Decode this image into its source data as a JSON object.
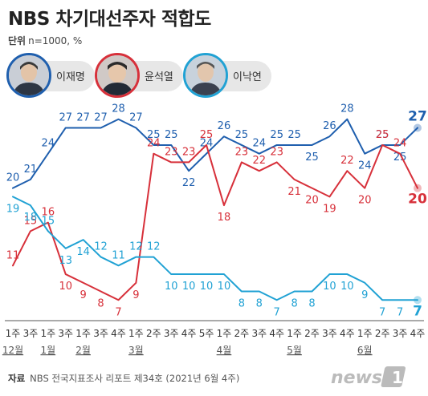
{
  "title": "NBS 차기대선주자 적합도",
  "unit": {
    "label": "단위",
    "value": "n=1000, %"
  },
  "legend": [
    {
      "name": "이재명",
      "color": "#1f5fae",
      "icon": "candidate-portrait-blue"
    },
    {
      "name": "윤석열",
      "color": "#d7303a",
      "icon": "candidate-portrait-red"
    },
    {
      "name": "이낙연",
      "color": "#21a2d4",
      "icon": "candidate-portrait-lightblue"
    }
  ],
  "source": {
    "label": "자료",
    "text": "NBS 전국지표조사 리포트 제34호 (2021년 6월 4주)"
  },
  "logo": {
    "text": "news",
    "mark": "1"
  },
  "chart_data": {
    "type": "line",
    "x": [
      "1주",
      "3주",
      "1주",
      "3주",
      "1주",
      "3주",
      "4주",
      "1주",
      "2주",
      "3주",
      "4주",
      "5주",
      "1주",
      "2주",
      "3주",
      "4주",
      "1주",
      "2주",
      "3주",
      "4주",
      "1주",
      "2주",
      "3주",
      "4주"
    ],
    "months": [
      {
        "label": "12월",
        "index": 0
      },
      {
        "label": "1월",
        "index": 2
      },
      {
        "label": "2월",
        "index": 4
      },
      {
        "label": "3월",
        "index": 7
      },
      {
        "label": "4월",
        "index": 12
      },
      {
        "label": "5월",
        "index": 16
      },
      {
        "label": "6월",
        "index": 20
      }
    ],
    "series": [
      {
        "name": "이재명",
        "color": "#1f5fae",
        "values": [
          20,
          21,
          24,
          27,
          27,
          27,
          28,
          27,
          25,
          25,
          22,
          24,
          26,
          25,
          24,
          25,
          25,
          25,
          26,
          28,
          24,
          25,
          25,
          27
        ]
      },
      {
        "name": "윤석열",
        "color": "#d7303a",
        "values": [
          11,
          15,
          16,
          10,
          9,
          8,
          7,
          9,
          24,
          23,
          23,
          25,
          18,
          23,
          22,
          23,
          21,
          20,
          19,
          22,
          20,
          25,
          24,
          20
        ]
      },
      {
        "name": "이낙연",
        "color": "#21a2d4",
        "values": [
          19,
          18,
          15,
          13,
          14,
          12,
          11,
          12,
          12,
          10,
          10,
          10,
          10,
          8,
          8,
          7,
          8,
          8,
          10,
          10,
          9,
          7,
          7,
          7
        ]
      }
    ],
    "ylim": [
      6,
      29
    ],
    "grid": false
  }
}
